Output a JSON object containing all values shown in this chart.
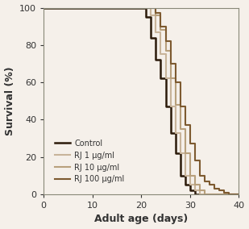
{
  "title": "",
  "xlabel": "Adult age (days)",
  "ylabel": "Survival (%)",
  "xlim": [
    0,
    40
  ],
  "ylim": [
    0,
    100
  ],
  "xticks": [
    0,
    10,
    20,
    30,
    40
  ],
  "yticks": [
    0,
    20,
    40,
    60,
    80,
    100
  ],
  "background_color": "#f5f0ea",
  "series": [
    {
      "label": "Control",
      "color": "#2b1a0a",
      "linewidth": 1.8,
      "x": [
        0,
        20,
        21,
        22,
        23,
        24,
        25,
        26,
        27,
        28,
        29,
        30,
        31,
        40
      ],
      "y": [
        100,
        100,
        95,
        84,
        72,
        62,
        47,
        33,
        22,
        10,
        5,
        2,
        0,
        0
      ]
    },
    {
      "label": "RJ 1 µg/ml",
      "color": "#c8b49a",
      "linewidth": 1.5,
      "x": [
        0,
        21,
        22,
        23,
        24,
        25,
        26,
        27,
        28,
        29,
        30,
        31,
        32,
        40
      ],
      "y": [
        100,
        100,
        96,
        87,
        75,
        62,
        47,
        33,
        22,
        10,
        5,
        2,
        0,
        0
      ]
    },
    {
      "label": "RJ 10 µg/ml",
      "color": "#b8a07c",
      "linewidth": 1.5,
      "x": [
        0,
        22,
        23,
        24,
        25,
        26,
        27,
        28,
        29,
        30,
        31,
        32,
        33,
        40
      ],
      "y": [
        100,
        100,
        96,
        88,
        77,
        62,
        48,
        35,
        22,
        10,
        5,
        2,
        0,
        0
      ]
    },
    {
      "label": "RJ 100 µg/ml",
      "color": "#7d5a30",
      "linewidth": 1.5,
      "x": [
        0,
        22,
        23,
        24,
        25,
        26,
        27,
        28,
        29,
        30,
        31,
        32,
        33,
        34,
        35,
        36,
        37,
        38,
        40
      ],
      "y": [
        100,
        100,
        97,
        90,
        82,
        70,
        60,
        47,
        37,
        27,
        18,
        10,
        7,
        5,
        3,
        2,
        1,
        0,
        0
      ]
    }
  ]
}
